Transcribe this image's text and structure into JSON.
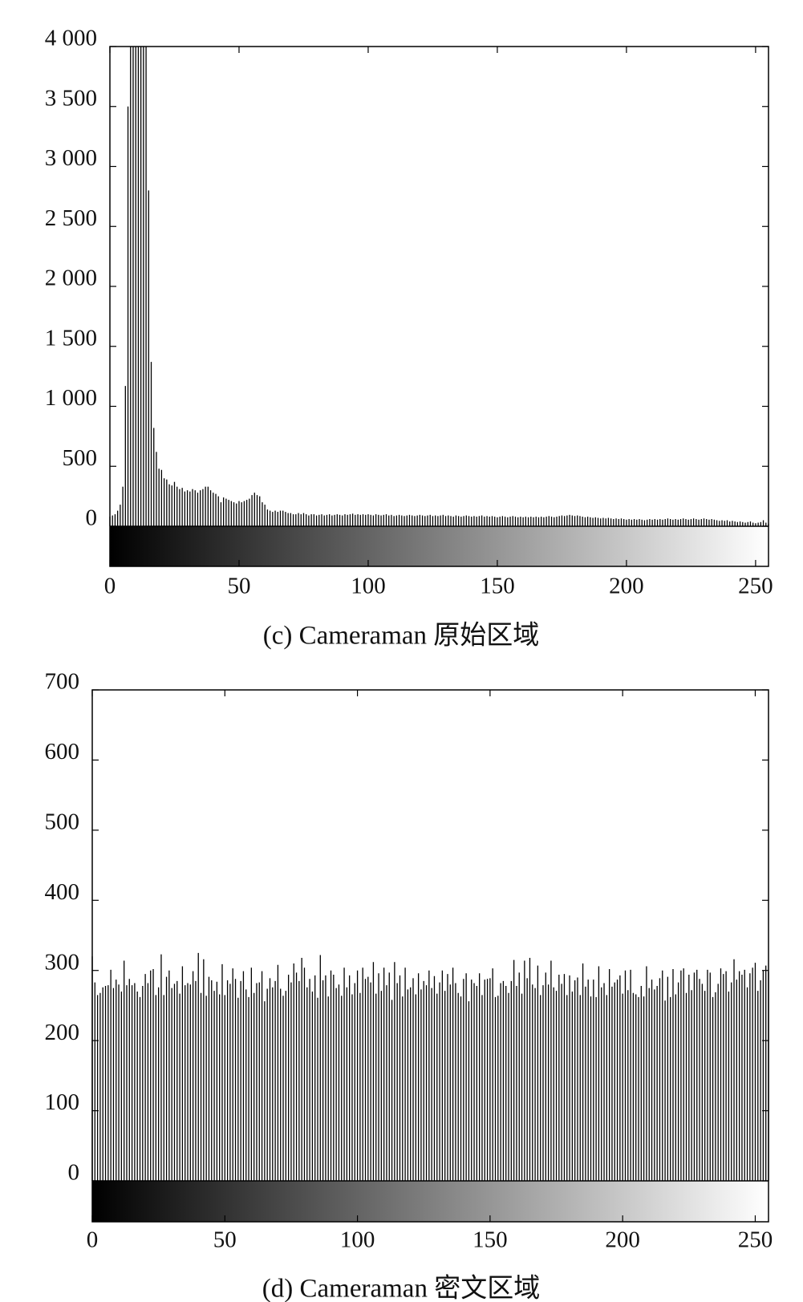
{
  "chart_data": [
    {
      "type": "bar",
      "caption": "(c) Cameraman 原始区域",
      "color": "#000000",
      "xlim": [
        0,
        255
      ],
      "xticks": [
        0,
        50,
        100,
        150,
        200,
        250
      ],
      "ylim": [
        0,
        4000
      ],
      "yticks": [
        0,
        500,
        {
          "value": 1000,
          "label": "1 000"
        },
        {
          "value": 1500,
          "label": "1 500"
        },
        {
          "value": 2000,
          "label": "2 000"
        },
        {
          "value": 2500,
          "label": "2 500"
        },
        {
          "value": 3000,
          "label": "3 000"
        },
        {
          "value": 3500,
          "label": "3 500"
        },
        {
          "value": 4000,
          "label": "4 000"
        }
      ],
      "values": [
        80,
        90,
        100,
        130,
        180,
        330,
        1170,
        3500,
        4000,
        4000,
        4000,
        4000,
        4000,
        4000,
        4000,
        2800,
        1370,
        820,
        620,
        480,
        470,
        400,
        390,
        350,
        340,
        370,
        330,
        310,
        320,
        290,
        300,
        290,
        310,
        300,
        280,
        300,
        310,
        330,
        330,
        300,
        280,
        270,
        250,
        200,
        240,
        230,
        220,
        210,
        200,
        190,
        210,
        200,
        210,
        220,
        230,
        260,
        280,
        260,
        250,
        200,
        180,
        140,
        130,
        120,
        130,
        120,
        130,
        130,
        120,
        110,
        110,
        100,
        100,
        110,
        100,
        110,
        100,
        90,
        100,
        100,
        90,
        95,
        100,
        90,
        95,
        100,
        90,
        95,
        100,
        95,
        90,
        100,
        95,
        100,
        105,
        95,
        100,
        95,
        100,
        95,
        100,
        95,
        90,
        100,
        95,
        90,
        95,
        100,
        90,
        95,
        85,
        90,
        95,
        90,
        85,
        90,
        95,
        90,
        85,
        90,
        95,
        90,
        85,
        90,
        95,
        85,
        90,
        85,
        90,
        95,
        85,
        90,
        85,
        80,
        90,
        85,
        80,
        85,
        90,
        85,
        80,
        85,
        80,
        85,
        90,
        80,
        85,
        80,
        85,
        80,
        75,
        80,
        85,
        80,
        75,
        80,
        85,
        80,
        75,
        80,
        75,
        80,
        75,
        80,
        75,
        80,
        75,
        80,
        75,
        80,
        85,
        80,
        75,
        80,
        85,
        90,
        85,
        90,
        95,
        90,
        85,
        90,
        85,
        80,
        75,
        80,
        75,
        70,
        75,
        70,
        65,
        70,
        65,
        70,
        65,
        60,
        65,
        60,
        65,
        60,
        55,
        60,
        55,
        60,
        55,
        60,
        55,
        50,
        55,
        60,
        55,
        60,
        55,
        60,
        55,
        60,
        65,
        60,
        55,
        60,
        55,
        60,
        65,
        60,
        55,
        60,
        65,
        60,
        55,
        60,
        65,
        60,
        55,
        60,
        55,
        50,
        45,
        50,
        45,
        50,
        40,
        45,
        40,
        35,
        40,
        35,
        30,
        35,
        40,
        30,
        25,
        30,
        35,
        50,
        30,
        20
      ]
    },
    {
      "type": "bar",
      "caption": "(d) Cameraman 密文区域",
      "color": "#000000",
      "xlim": [
        0,
        255
      ],
      "xticks": [
        0,
        50,
        100,
        150,
        200,
        250
      ],
      "ylim": [
        0,
        700
      ],
      "yticks": [
        0,
        100,
        200,
        300,
        400,
        500,
        600,
        700
      ],
      "values": [
        320,
        283,
        265,
        268,
        276,
        278,
        279,
        301,
        275,
        287,
        280,
        270,
        314,
        279,
        288,
        279,
        282,
        270,
        262,
        278,
        295,
        282,
        300,
        302,
        265,
        276,
        323,
        265,
        291,
        300,
        275,
        281,
        285,
        267,
        306,
        279,
        282,
        280,
        299,
        285,
        325,
        268,
        316,
        264,
        291,
        286,
        271,
        284,
        266,
        309,
        265,
        286,
        281,
        303,
        288,
        261,
        285,
        299,
        273,
        262,
        304,
        268,
        282,
        283,
        299,
        256,
        274,
        289,
        276,
        285,
        308,
        274,
        264,
        271,
        294,
        283,
        310,
        297,
        285,
        318,
        304,
        276,
        288,
        270,
        293,
        261,
        322,
        286,
        293,
        263,
        300,
        294,
        275,
        280,
        264,
        304,
        276,
        293,
        266,
        282,
        300,
        268,
        304,
        288,
        291,
        283,
        312,
        267,
        296,
        271,
        304,
        279,
        297,
        258,
        312,
        282,
        293,
        263,
        304,
        273,
        276,
        289,
        266,
        296,
        273,
        285,
        279,
        300,
        275,
        292,
        267,
        283,
        300,
        271,
        295,
        280,
        304,
        282,
        268,
        263,
        288,
        296,
        256,
        287,
        282,
        278,
        296,
        265,
        287,
        288,
        289,
        303,
        262,
        264,
        282,
        285,
        278,
        268,
        285,
        315,
        278,
        297,
        267,
        314,
        289,
        318,
        280,
        275,
        307,
        265,
        279,
        297,
        280,
        314,
        276,
        271,
        294,
        281,
        295,
        265,
        293,
        270,
        286,
        290,
        265,
        310,
        277,
        287,
        263,
        287,
        262,
        306,
        276,
        282,
        265,
        302,
        277,
        283,
        287,
        293,
        267,
        300,
        272,
        301,
        268,
        266,
        262,
        278,
        263,
        306,
        275,
        287,
        273,
        278,
        289,
        300,
        257,
        291,
        262,
        302,
        266,
        283,
        300,
        303,
        268,
        294,
        272,
        297,
        301,
        288,
        281,
        271,
        301,
        297,
        262,
        269,
        281,
        303,
        295,
        299,
        270,
        283,
        316,
        287,
        299,
        294,
        301,
        276,
        296,
        304,
        311,
        271,
        286,
        300,
        307,
        298
      ]
    }
  ]
}
